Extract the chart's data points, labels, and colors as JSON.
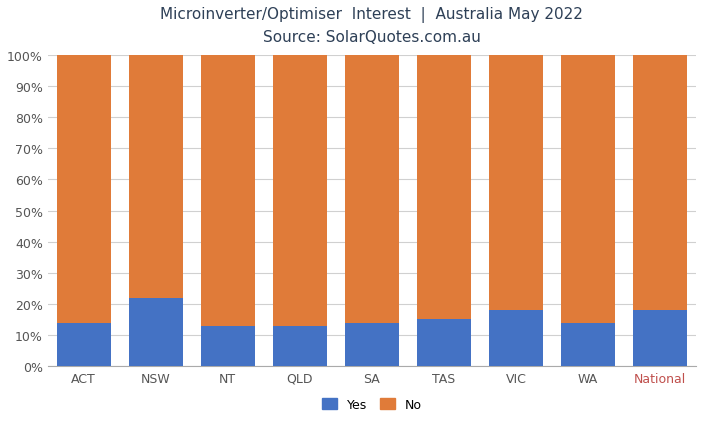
{
  "categories": [
    "ACT",
    "NSW",
    "NT",
    "QLD",
    "SA",
    "TAS",
    "VIC",
    "WA",
    "National"
  ],
  "yes_values": [
    14,
    22,
    13,
    13,
    14,
    15,
    18,
    14,
    18
  ],
  "no_values": [
    86,
    78,
    87,
    87,
    86,
    85,
    82,
    86,
    82
  ],
  "yes_color": "#4472c4",
  "no_color": "#e07b39",
  "title_line1": "Microinverter/Optimiser  Interest  |  Australia May 2022",
  "title_line2": "Source: SolarQuotes.com.au",
  "ylabel_ticks": [
    "0%",
    "10%",
    "20%",
    "30%",
    "40%",
    "50%",
    "60%",
    "70%",
    "80%",
    "90%",
    "100%"
  ],
  "ylabel_values": [
    0,
    10,
    20,
    30,
    40,
    50,
    60,
    70,
    80,
    90,
    100
  ],
  "legend_yes": "Yes",
  "legend_no": "No",
  "title_color": "#2e4057",
  "national_color": "#c0504d",
  "background_color": "#ffffff",
  "grid_color": "#d0d0d0",
  "bar_width": 0.75
}
